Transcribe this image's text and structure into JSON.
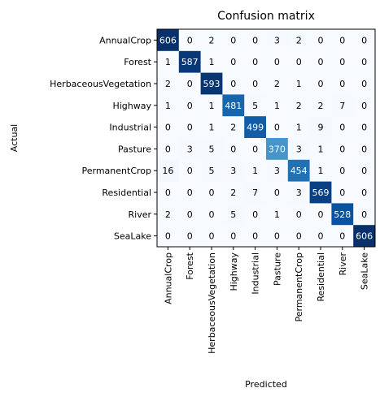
{
  "chart_data": {
    "type": "heatmap",
    "title": "Confusion matrix",
    "xlabel": "Predicted",
    "ylabel": "Actual",
    "colormap": "Blues",
    "value_range": [
      0,
      606
    ],
    "x_categories": [
      "AnnualCrop",
      "Forest",
      "HerbaceousVegetation",
      "Highway",
      "Industrial",
      "Pasture",
      "PermanentCrop",
      "Residential",
      "River",
      "SeaLake"
    ],
    "y_categories": [
      "AnnualCrop",
      "Forest",
      "HerbaceousVegetation",
      "Highway",
      "Industrial",
      "Pasture",
      "PermanentCrop",
      "Residential",
      "River",
      "SeaLake"
    ],
    "values": [
      [
        606,
        0,
        2,
        0,
        0,
        3,
        2,
        0,
        0,
        0
      ],
      [
        1,
        587,
        1,
        0,
        0,
        0,
        0,
        0,
        0,
        0
      ],
      [
        2,
        0,
        593,
        0,
        0,
        2,
        1,
        0,
        0,
        0
      ],
      [
        1,
        0,
        1,
        481,
        5,
        1,
        2,
        2,
        7,
        0
      ],
      [
        0,
        0,
        1,
        2,
        499,
        0,
        1,
        9,
        0,
        0
      ],
      [
        0,
        3,
        5,
        0,
        0,
        370,
        3,
        1,
        0,
        0
      ],
      [
        16,
        0,
        5,
        3,
        1,
        3,
        454,
        1,
        0,
        0
      ],
      [
        0,
        0,
        0,
        2,
        7,
        0,
        3,
        569,
        0,
        0
      ],
      [
        2,
        0,
        0,
        5,
        0,
        1,
        0,
        0,
        528,
        0
      ],
      [
        0,
        0,
        0,
        0,
        0,
        0,
        0,
        0,
        0,
        606
      ]
    ]
  }
}
